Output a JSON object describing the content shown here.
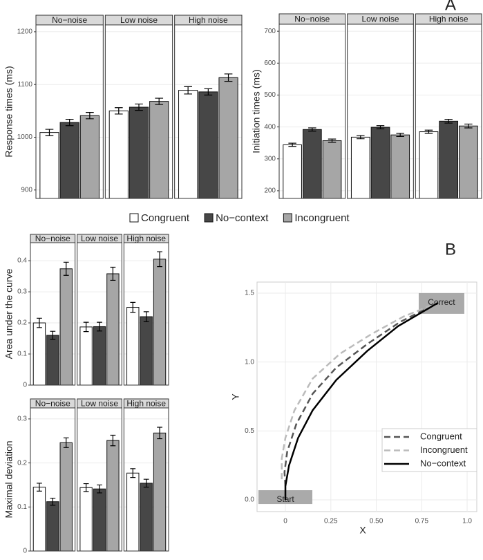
{
  "panel_labels": [
    "A",
    "B"
  ],
  "chart_data": [
    {
      "type": "bar",
      "y_label": "Response times (ms)",
      "categories": [
        "No−noise",
        "Low noise",
        "High noise"
      ],
      "series": [
        {
          "name": "Congruent",
          "color": "#ffffff",
          "values": [
            1009,
            1050,
            1089
          ],
          "errors": [
            6,
            6,
            7
          ]
        },
        {
          "name": "No−context",
          "color": "#474747",
          "values": [
            1028,
            1057,
            1086
          ],
          "errors": [
            6,
            6,
            6
          ]
        },
        {
          "name": "Incongruent",
          "color": "#a6a6a6",
          "values": [
            1041,
            1068,
            1113
          ],
          "errors": [
            6,
            6,
            7
          ]
        }
      ],
      "ylim": [
        884,
        1213
      ],
      "yticks": [
        900,
        1000,
        1100,
        1200
      ],
      "grid": true
    },
    {
      "type": "bar",
      "y_label": "Initiation times (ms)",
      "categories": [
        "No−noise",
        "Low noise",
        "High noise"
      ],
      "series": [
        {
          "color": "#ffffff",
          "values": [
            344,
            368,
            385
          ],
          "errors": [
            5,
            5,
            5
          ]
        },
        {
          "color": "#474747",
          "values": [
            392,
            399,
            418
          ],
          "errors": [
            5,
            5,
            6
          ]
        },
        {
          "color": "#a6a6a6",
          "values": [
            357,
            375,
            403
          ],
          "errors": [
            5,
            5,
            6
          ]
        }
      ],
      "ylim": [
        176,
        722
      ],
      "yticks": [
        200,
        300,
        400,
        500,
        600,
        700
      ],
      "grid": true
    },
    {
      "type": "bar",
      "y_label": "Area under the curve",
      "categories": [
        "No−noise",
        "Low noise",
        "High noise"
      ],
      "series": [
        {
          "color": "#ffffff",
          "values": [
            0.2,
            0.187,
            0.25
          ],
          "errors": [
            0.015,
            0.015,
            0.016
          ]
        },
        {
          "color": "#474747",
          "values": [
            0.16,
            0.188,
            0.22
          ],
          "errors": [
            0.013,
            0.014,
            0.016
          ]
        },
        {
          "color": "#a6a6a6",
          "values": [
            0.374,
            0.358,
            0.405
          ],
          "errors": [
            0.021,
            0.021,
            0.024
          ]
        }
      ],
      "ylim": [
        0,
        0.458
      ],
      "yticks": [
        0,
        0.1,
        0.2,
        0.3,
        0.4
      ],
      "grid": true
    },
    {
      "type": "bar",
      "y_label": "Maximal deviation",
      "categories": [
        "No−noise",
        "Low noise",
        "High noise"
      ],
      "series": [
        {
          "color": "#ffffff",
          "values": [
            0.145,
            0.144,
            0.177
          ],
          "errors": [
            0.009,
            0.009,
            0.01
          ]
        },
        {
          "color": "#474747",
          "values": [
            0.112,
            0.141,
            0.154
          ],
          "errors": [
            0.008,
            0.009,
            0.009
          ]
        },
        {
          "color": "#a6a6a6",
          "values": [
            0.246,
            0.251,
            0.268
          ],
          "errors": [
            0.011,
            0.012,
            0.013
          ]
        }
      ],
      "ylim": [
        0,
        0.325
      ],
      "yticks": [
        0,
        0.1,
        0.2,
        0.3
      ],
      "grid": true
    },
    {
      "type": "line",
      "x_label": "X",
      "y_label": "Y",
      "annotations": [
        "Start",
        "Correct"
      ],
      "series": [
        {
          "name": "Congruent",
          "color": "#555555",
          "dash": true,
          "x": [
            0,
            -0.005,
            0.01,
            0.06,
            0.15,
            0.28,
            0.45,
            0.63,
            0.84
          ],
          "values": [
            0.1,
            0.2,
            0.35,
            0.55,
            0.77,
            0.96,
            1.13,
            1.29,
            1.43
          ]
        },
        {
          "name": "Incongruent",
          "color": "#bbbbbb",
          "dash": true,
          "x": [
            -0.02,
            -0.02,
            0,
            0.05,
            0.15,
            0.3,
            0.47,
            0.65,
            0.84
          ],
          "values": [
            0.15,
            0.3,
            0.45,
            0.65,
            0.88,
            1.06,
            1.2,
            1.33,
            1.43
          ]
        },
        {
          "name": "No−context",
          "color": "#000000",
          "dash": false,
          "x": [
            0,
            0,
            0.02,
            0.07,
            0.15,
            0.28,
            0.45,
            0.62,
            0.84
          ],
          "values": [
            0,
            0.1,
            0.25,
            0.45,
            0.65,
            0.87,
            1.08,
            1.26,
            1.43
          ]
        }
      ],
      "xlim": [
        -0.156,
        1.053
      ],
      "ylim": [
        -0.085,
        1.58
      ],
      "xticks": [
        0,
        0.25,
        {
          "value": 0.5,
          "label": "0.50"
        },
        0.75,
        {
          "value": 1,
          "label": "1.0"
        }
      ],
      "yticks": [
        {
          "value": 0,
          "label": "0.0"
        },
        0.5,
        {
          "value": 1,
          "label": "1.0"
        },
        1.5
      ],
      "grid": true,
      "legend": "bottom-right"
    }
  ]
}
